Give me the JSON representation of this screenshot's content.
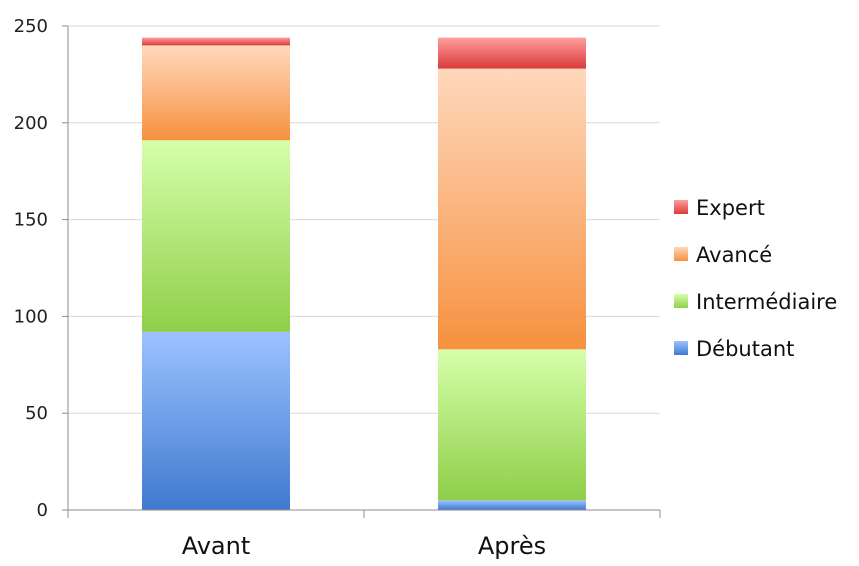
{
  "chart_data": {
    "type": "bar",
    "stacked": true,
    "categories": [
      "Avant",
      "Après"
    ],
    "series": [
      {
        "name": "Débutant",
        "values": [
          92,
          5
        ],
        "color": "#4f86d6",
        "color_light": "#9cc2ff",
        "color_dark": "#3f7ad0"
      },
      {
        "name": "Intermédiaire",
        "values": [
          99,
          78
        ],
        "color": "#9fd85f",
        "color_light": "#d6ffa9",
        "color_dark": "#8fcf4a"
      },
      {
        "name": "Avancé",
        "values": [
          49,
          145
        ],
        "color": "#f7a25c",
        "color_light": "#ffd8bd",
        "color_dark": "#f6913f"
      },
      {
        "name": "Expert",
        "values": [
          4,
          16
        ],
        "color": "#e55353",
        "color_light": "#ff9e9e",
        "color_dark": "#d93b3b"
      }
    ],
    "legend_order": [
      "Expert",
      "Avancé",
      "Intermédiaire",
      "Débutant"
    ],
    "ylim": [
      0,
      250
    ],
    "yticks": [
      0,
      50,
      100,
      150,
      200,
      250
    ],
    "ytick_labels": [
      "0",
      "50",
      "100",
      "150",
      "200",
      "250"
    ],
    "grid": true,
    "legend_position": "right",
    "title": "",
    "xlabel": "",
    "ylabel": ""
  }
}
